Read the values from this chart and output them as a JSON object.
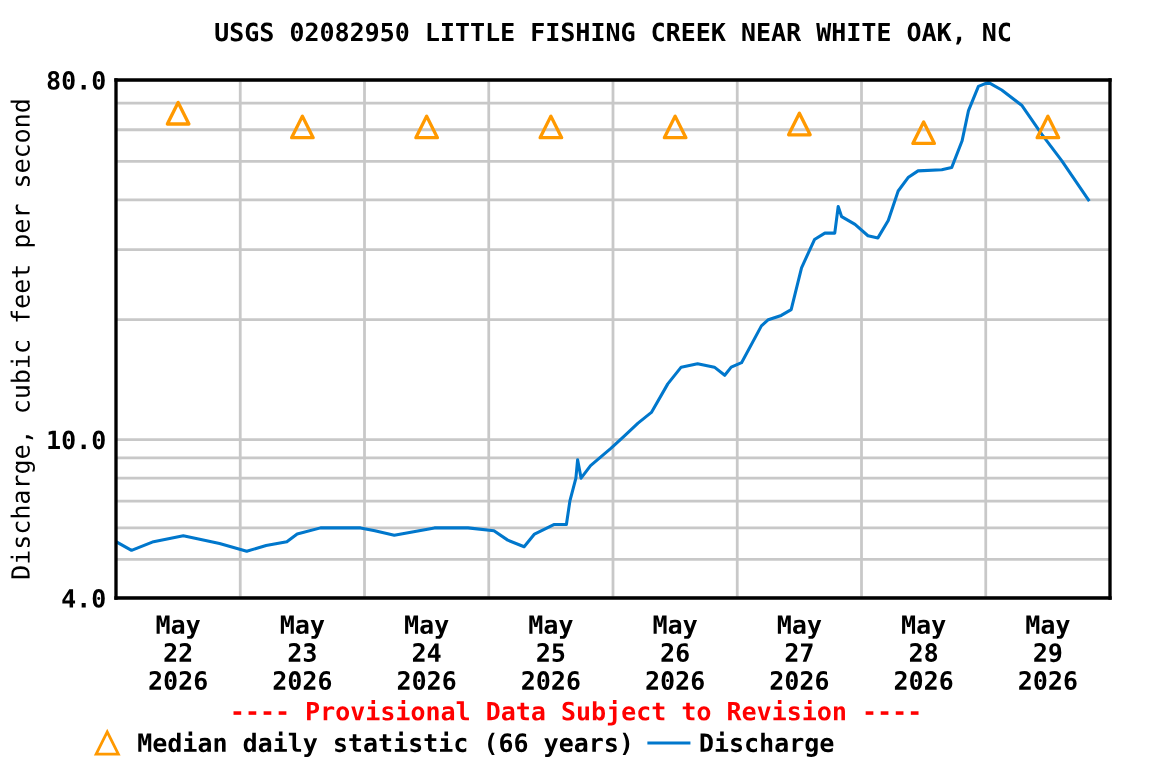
{
  "chart_data": {
    "type": "line",
    "title": "USGS 02082950 LITTLE FISHING CREEK NEAR WHITE OAK, NC",
    "ylabel": "Discharge, cubic feet per second",
    "annotations": [
      "---- Provisional Data Subject to Revision ----"
    ],
    "log": "y",
    "grid": true,
    "legend": "bottom",
    "xlim": [
      "2026-05-22T00:00",
      "2026-05-30T00:00"
    ],
    "xticks": [
      {
        "value": "2026-05-22T12:00",
        "label": "May\n22\n2026"
      },
      {
        "value": "2026-05-23T12:00",
        "label": "May\n23\n2026"
      },
      {
        "value": "2026-05-24T12:00",
        "label": "May\n24\n2026"
      },
      {
        "value": "2026-05-25T12:00",
        "label": "May\n25\n2026"
      },
      {
        "value": "2026-05-26T12:00",
        "label": "May\n26\n2026"
      },
      {
        "value": "2026-05-27T12:00",
        "label": "May\n27\n2026"
      },
      {
        "value": "2026-05-28T12:00",
        "label": "May\n28\n2026"
      },
      {
        "value": "2026-05-29T12:00",
        "label": "May\n29\n2026"
      },
      {
        "value": "2026-05-23T00:00",
        "label": null
      },
      {
        "value": "2026-05-24T00:00",
        "label": null
      },
      {
        "value": "2026-05-25T00:00",
        "label": null
      },
      {
        "value": "2026-05-26T00:00",
        "label": null
      },
      {
        "value": "2026-05-27T00:00",
        "label": null
      },
      {
        "value": "2026-05-28T00:00",
        "label": null
      },
      {
        "value": "2026-05-29T00:00",
        "label": null
      }
    ],
    "ylim": [
      4,
      80
    ],
    "yticks": [
      {
        "value": 4,
        "label": "4.0"
      },
      {
        "value": 10,
        "label": "10.0"
      },
      {
        "value": 80,
        "label": "80.0"
      },
      {
        "value": 5,
        "label": null
      },
      {
        "value": 6,
        "label": null
      },
      {
        "value": 7,
        "label": null
      },
      {
        "value": 8,
        "label": null
      },
      {
        "value": 9,
        "label": null
      },
      {
        "value": 20,
        "label": null
      },
      {
        "value": 30,
        "label": null
      },
      {
        "value": 40,
        "label": null
      },
      {
        "value": 50,
        "label": null
      },
      {
        "value": 60,
        "label": null
      },
      {
        "value": 70,
        "label": null
      }
    ],
    "series": [
      {
        "name": "Median daily statistic (66 years)",
        "type": "scatter",
        "marker": "triangle",
        "color": "#ff9900",
        "x": [
          "2026-05-22T12:00",
          "2026-05-23T12:00",
          "2026-05-24T12:00",
          "2026-05-25T12:00",
          "2026-05-26T12:00",
          "2026-05-27T12:00",
          "2026-05-28T12:00",
          "2026-05-29T12:00"
        ],
        "values": [
          66,
          61,
          61,
          61,
          61,
          62,
          59,
          61
        ]
      },
      {
        "name": "Discharge",
        "line_style": "solid",
        "color": "#0077cc",
        "x": [
          "2026-05-22T00:00",
          "2026-05-22T03:00",
          "2026-05-22T07:15",
          "2026-05-22T13:00",
          "2026-05-22T20:00",
          "2026-05-23T01:15",
          "2026-05-23T05:00",
          "2026-05-23T09:00",
          "2026-05-23T11:00",
          "2026-05-23T15:30",
          "2026-05-23T23:15",
          "2026-05-24T02:00",
          "2026-05-24T05:45",
          "2026-05-24T13:30",
          "2026-05-24T20:00",
          "2026-05-25T01:00",
          "2026-05-25T03:40",
          "2026-05-25T06:50",
          "2026-05-25T08:50",
          "2026-05-25T12:40",
          "2026-05-25T15:00",
          "2026-05-25T15:40",
          "2026-05-25T16:50",
          "2026-05-25T17:10",
          "2026-05-25T17:50",
          "2026-05-25T19:40",
          "2026-05-25T23:35",
          "2026-05-26T02:10",
          "2026-05-26T04:50",
          "2026-05-26T07:25",
          "2026-05-26T10:35",
          "2026-05-26T13:10",
          "2026-05-26T16:20",
          "2026-05-26T19:35",
          "2026-05-26T21:35",
          "2026-05-26T22:50",
          "2026-05-27T00:50",
          "2026-05-27T04:40",
          "2026-05-27T06:00",
          "2026-05-27T08:30",
          "2026-05-27T10:25",
          "2026-05-27T12:25",
          "2026-05-27T14:55",
          "2026-05-27T16:55",
          "2026-05-27T18:50",
          "2026-05-27T19:30",
          "2026-05-27T20:10",
          "2026-05-27T22:45",
          "2026-05-28T01:15",
          "2026-05-28T03:10",
          "2026-05-28T05:10",
          "2026-05-28T07:05",
          "2026-05-28T09:00",
          "2026-05-28T10:55",
          "2026-05-28T15:30",
          "2026-05-28T17:25",
          "2026-05-28T19:25",
          "2026-05-28T20:40",
          "2026-05-28T22:35",
          "2026-05-29T00:30",
          "2026-05-29T03:05",
          "2026-05-29T07:00",
          "2026-05-29T10:50",
          "2026-05-29T14:40",
          "2026-05-29T19:50"
        ],
        "values": [
          5.54,
          5.27,
          5.54,
          5.73,
          5.48,
          5.24,
          5.42,
          5.54,
          5.79,
          6.0,
          6.0,
          5.9,
          5.75,
          6.0,
          6.0,
          5.9,
          5.59,
          5.38,
          5.79,
          6.12,
          6.12,
          7.0,
          8.0,
          8.9,
          8.0,
          8.6,
          9.5,
          10.2,
          11.0,
          11.7,
          13.8,
          15.2,
          15.5,
          15.2,
          14.5,
          15.2,
          15.6,
          19.3,
          20.0,
          20.5,
          21.2,
          27.0,
          31.8,
          33.0,
          33.0,
          38.5,
          36.3,
          34.7,
          32.5,
          32.1,
          35.5,
          42.1,
          45.5,
          47.3,
          47.6,
          48.2,
          56.2,
          67,
          77.1,
          78.9,
          75.5,
          69,
          58.4,
          50.2,
          40
        ]
      }
    ]
  }
}
